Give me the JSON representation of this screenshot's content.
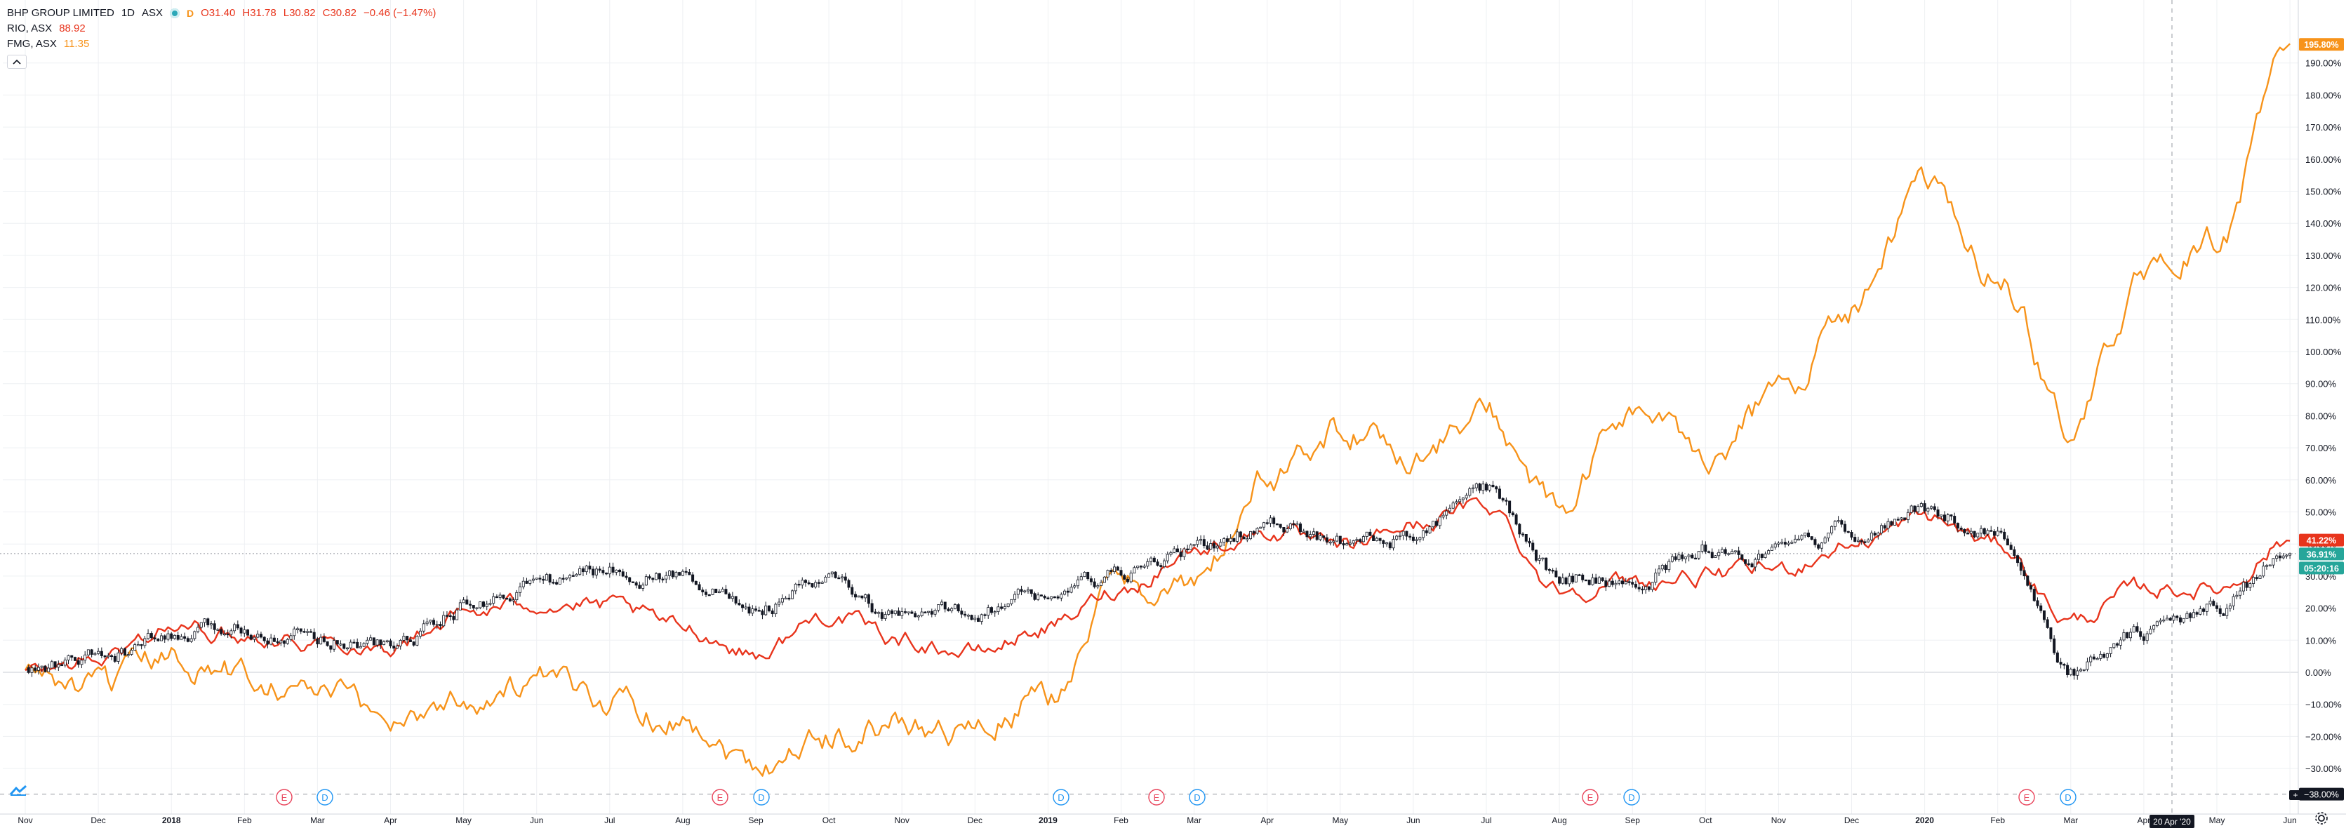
{
  "legend": {
    "main": {
      "symbol": "BHP GROUP LIMITED",
      "interval": "1D",
      "exchange": "ASX",
      "open": "O31.40",
      "high": "H31.78",
      "low": "L30.82",
      "close": "C30.82",
      "change": "−0.46 (−1.47%)"
    },
    "compare": [
      {
        "symbol": "RIO, ASX",
        "value": "88.92"
      },
      {
        "symbol": "FMG, ASX",
        "value": "11.35"
      }
    ],
    "collapse_icon": "chevron-up-icon"
  },
  "axis": {
    "x_ticks": [
      "Nov",
      "Dec",
      "2018",
      "Feb",
      "Mar",
      "Apr",
      "May",
      "Jun",
      "Jul",
      "Aug",
      "Sep",
      "Oct",
      "Nov",
      "Dec",
      "2019",
      "Feb",
      "Mar",
      "Apr",
      "May",
      "Jun",
      "Jul",
      "Aug",
      "Sep",
      "Oct",
      "Nov",
      "Dec",
      "2020",
      "Feb",
      "Mar",
      "Apr",
      "May",
      "Jun"
    ],
    "y_ticks": [
      "190.00%",
      "180.00%",
      "170.00%",
      "160.00%",
      "150.00%",
      "140.00%",
      "130.00%",
      "120.00%",
      "110.00%",
      "100.00%",
      "90.00%",
      "80.00%",
      "70.00%",
      "60.00%",
      "50.00%",
      "40.00%",
      "30.00%",
      "20.00%",
      "10.00%",
      "0.00%",
      "−10.00%",
      "−20.00%",
      "−30.00%"
    ],
    "crosshair_date": "20 Apr '20"
  },
  "price_labels": {
    "fmg": "195.80%",
    "rio": "41.22%",
    "bhp": "36.91%",
    "countdown": "05:20:16",
    "crosshair": "−38.00%"
  },
  "event_markers": [
    {
      "kind": "earnings",
      "letter": "E"
    },
    {
      "kind": "dividend",
      "letter": "D"
    },
    {
      "kind": "earnings",
      "letter": "E"
    },
    {
      "kind": "dividend",
      "letter": "D"
    },
    {
      "kind": "dividend",
      "letter": "D"
    },
    {
      "kind": "earnings",
      "letter": "E"
    },
    {
      "kind": "dividend",
      "letter": "D"
    },
    {
      "kind": "earnings",
      "letter": "E"
    },
    {
      "kind": "dividend",
      "letter": "D"
    },
    {
      "kind": "earnings",
      "letter": "E"
    },
    {
      "kind": "dividend",
      "letter": "D"
    }
  ],
  "colors": {
    "bhp": "#131722",
    "rio": "#e8341c",
    "fmg": "#f7931a",
    "earnings": "#e8435a",
    "dividend": "#2196f3",
    "grid": "#eef0f3",
    "axis_text": "#131722"
  },
  "icons": {
    "logo": "tradingview-logo-icon",
    "settings": "gear-icon",
    "add": "plus-icon"
  },
  "chart_data": {
    "type": "line",
    "ylabel": "",
    "y_unit": "%",
    "ylim": [
      -30,
      200
    ],
    "grid": true,
    "legend_placement": "top-left",
    "x": [
      "2017-11",
      "2017-12",
      "2018-01",
      "2018-02",
      "2018-03",
      "2018-04",
      "2018-05",
      "2018-06",
      "2018-07",
      "2018-08",
      "2018-09",
      "2018-10",
      "2018-11",
      "2018-12",
      "2019-01",
      "2019-02",
      "2019-03",
      "2019-04",
      "2019-05",
      "2019-06",
      "2019-07",
      "2019-08",
      "2019-09",
      "2019-10",
      "2019-11",
      "2019-12",
      "2020-01",
      "2020-02",
      "2020-03",
      "2020-04",
      "2020-05",
      "2020-06"
    ],
    "series": [
      {
        "name": "BHP GROUP LIMITED",
        "style": "candles",
        "values": [
          0,
          4,
          10,
          14,
          12,
          8,
          20,
          28,
          32,
          30,
          20,
          28,
          16,
          20,
          24,
          30,
          38,
          46,
          40,
          42,
          56,
          30,
          28,
          38,
          36,
          44,
          50,
          44,
          0,
          12,
          20,
          37
        ]
      },
      {
        "name": "RIO, ASX",
        "values": [
          0,
          4,
          14,
          12,
          10,
          8,
          18,
          22,
          20,
          14,
          6,
          18,
          10,
          6,
          14,
          26,
          38,
          44,
          38,
          46,
          52,
          26,
          28,
          30,
          32,
          40,
          48,
          40,
          16,
          26,
          26,
          41
        ]
      },
      {
        "name": "FMG, ASX",
        "values": [
          0,
          -6,
          4,
          0,
          -6,
          -14,
          -8,
          -4,
          -8,
          -14,
          -28,
          -20,
          -16,
          -18,
          -8,
          28,
          26,
          60,
          76,
          68,
          80,
          50,
          82,
          68,
          86,
          114,
          150,
          124,
          76,
          122,
          134,
          196
        ]
      }
    ]
  }
}
